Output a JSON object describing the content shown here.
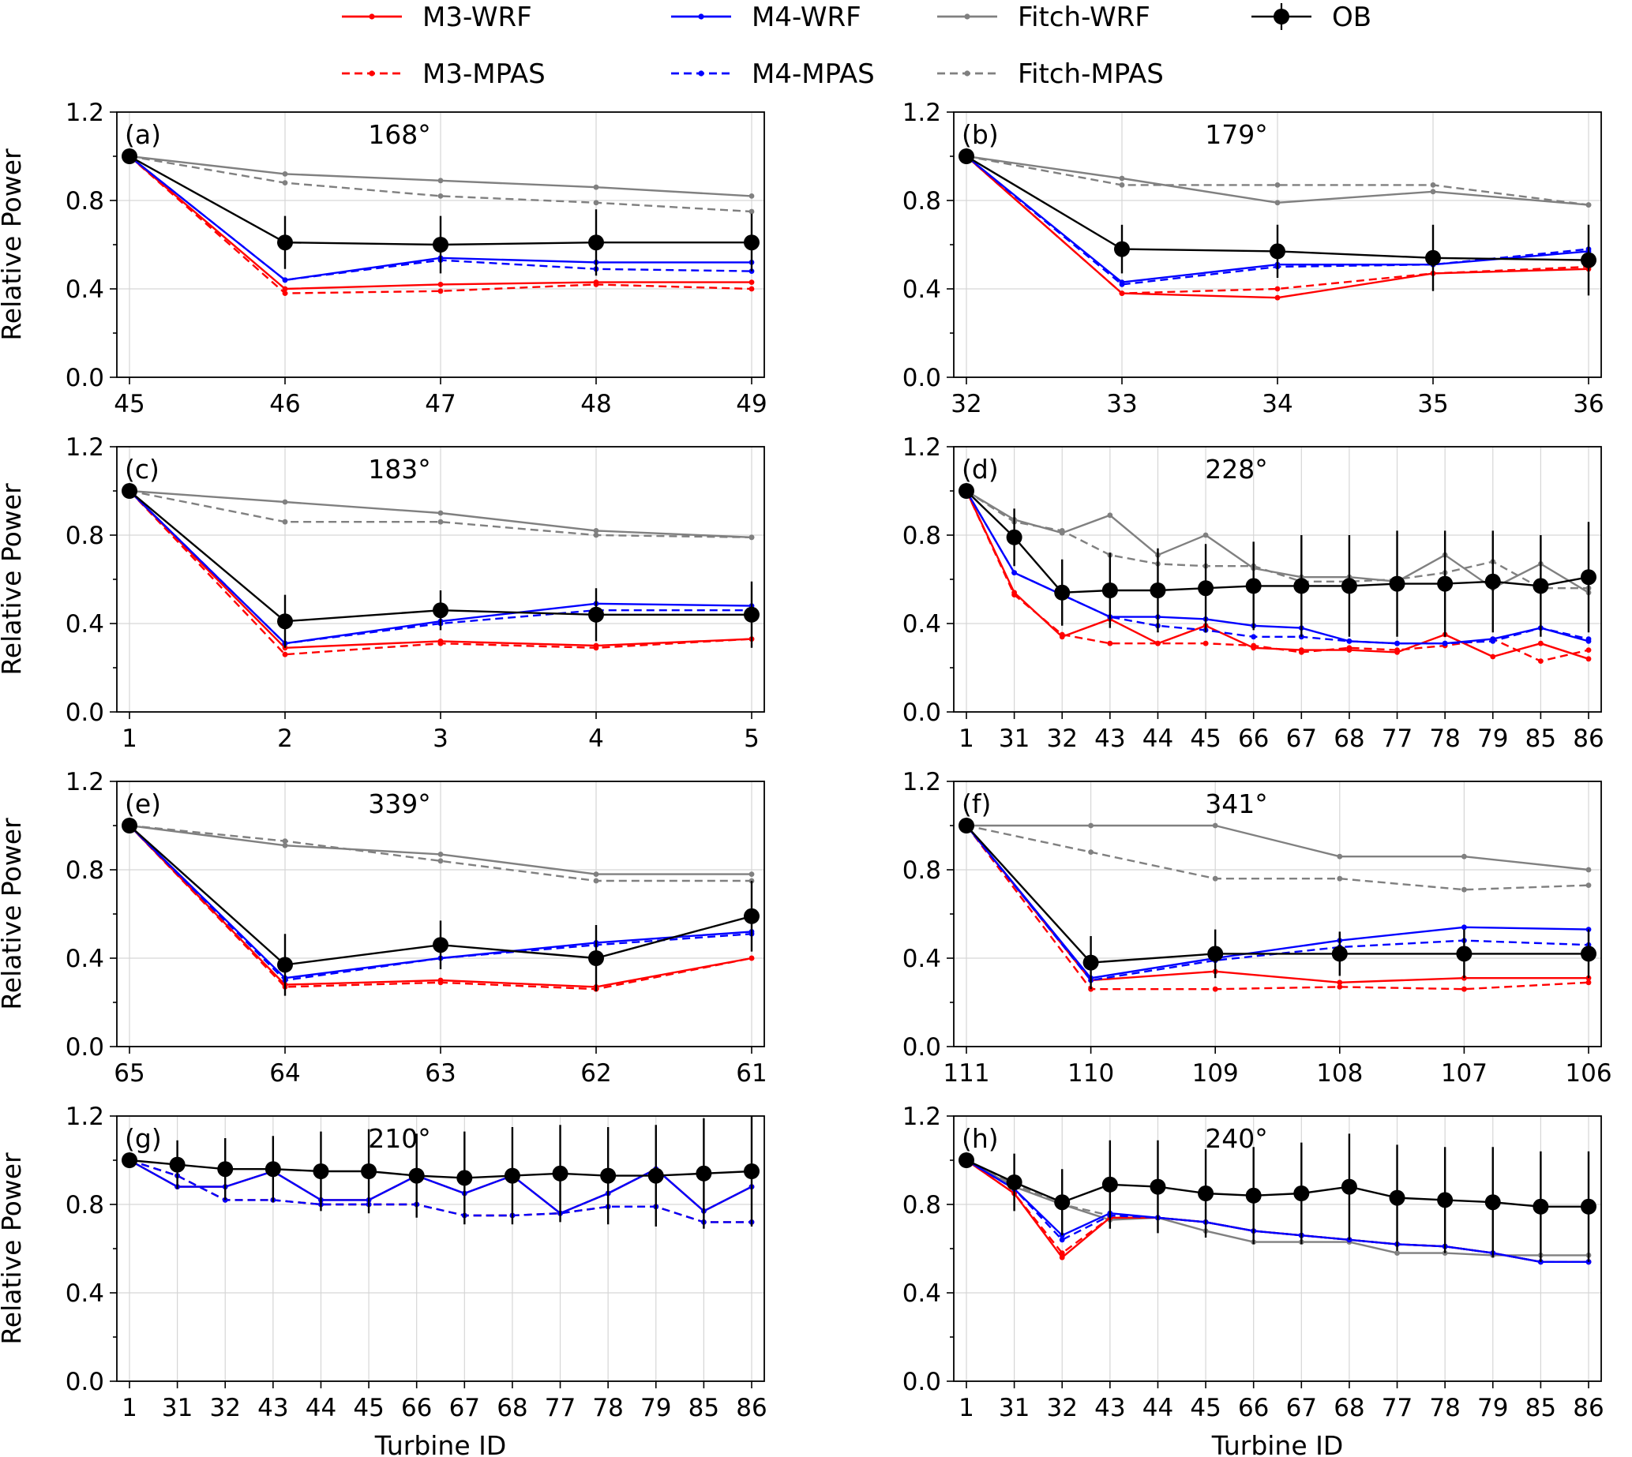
{
  "legend": {
    "entries": [
      {
        "key": "M3-WRF",
        "label": "M3-WRF",
        "color": "#ff0000",
        "dashed": false
      },
      {
        "key": "M4-WRF",
        "label": "M4-WRF",
        "color": "#0000ff",
        "dashed": false
      },
      {
        "key": "Fitch-WRF",
        "label": "Fitch-WRF",
        "color": "#808080",
        "dashed": false
      },
      {
        "key": "OB",
        "label": "OB",
        "color": "#000000",
        "dashed": false
      },
      {
        "key": "M3-MPAS",
        "label": "M3-MPAS",
        "color": "#ff0000",
        "dashed": true
      },
      {
        "key": "M4-MPAS",
        "label": "M4-MPAS",
        "color": "#0000ff",
        "dashed": true
      },
      {
        "key": "Fitch-MPAS",
        "label": "Fitch-MPAS",
        "color": "#808080",
        "dashed": true
      }
    ]
  },
  "axis_labels": {
    "ylabel": "Relative Power",
    "xlabel": "Turbine ID"
  },
  "chart_data": [
    {
      "type": "line",
      "panel": "(a)",
      "direction": "168°",
      "categories": [
        "45",
        "46",
        "47",
        "48",
        "49"
      ],
      "ylim": [
        0,
        1.2
      ],
      "yticks": [
        "0.0",
        "0.4",
        "0.8",
        "1.2"
      ],
      "grid": true,
      "series": [
        {
          "name": "Fitch-WRF",
          "values": [
            1.0,
            0.92,
            0.89,
            0.86,
            0.82
          ]
        },
        {
          "name": "Fitch-MPAS",
          "values": [
            1.0,
            0.88,
            0.82,
            0.79,
            0.75
          ]
        },
        {
          "name": "M4-WRF",
          "values": [
            1.0,
            0.44,
            0.54,
            0.52,
            0.52
          ]
        },
        {
          "name": "M4-MPAS",
          "values": [
            1.0,
            0.44,
            0.53,
            0.49,
            0.48
          ]
        },
        {
          "name": "M3-WRF",
          "values": [
            1.0,
            0.4,
            0.42,
            0.43,
            0.43
          ]
        },
        {
          "name": "M3-MPAS",
          "values": [
            1.0,
            0.38,
            0.39,
            0.42,
            0.4
          ]
        },
        {
          "name": "OB",
          "values": [
            1.0,
            0.61,
            0.6,
            0.61,
            0.61
          ],
          "err": [
            0,
            0.12,
            0.13,
            0.15,
            0.13
          ]
        }
      ]
    },
    {
      "type": "line",
      "panel": "(b)",
      "direction": "179°",
      "categories": [
        "32",
        "33",
        "34",
        "35",
        "36"
      ],
      "ylim": [
        0,
        1.2
      ],
      "yticks": [
        "0.0",
        "0.4",
        "0.8",
        "1.2"
      ],
      "grid": true,
      "series": [
        {
          "name": "Fitch-WRF",
          "values": [
            1.0,
            0.9,
            0.79,
            0.84,
            0.78
          ]
        },
        {
          "name": "Fitch-MPAS",
          "values": [
            1.0,
            0.87,
            0.87,
            0.87,
            0.78
          ]
        },
        {
          "name": "M4-WRF",
          "values": [
            1.0,
            0.43,
            0.51,
            0.51,
            0.57
          ]
        },
        {
          "name": "M4-MPAS",
          "values": [
            1.0,
            0.42,
            0.5,
            0.51,
            0.58
          ]
        },
        {
          "name": "M3-WRF",
          "values": [
            1.0,
            0.38,
            0.36,
            0.47,
            0.49
          ]
        },
        {
          "name": "M3-MPAS",
          "values": [
            1.0,
            0.38,
            0.4,
            0.47,
            0.5
          ]
        },
        {
          "name": "OB",
          "values": [
            1.0,
            0.58,
            0.57,
            0.54,
            0.53
          ],
          "err": [
            0,
            0.11,
            0.12,
            0.15,
            0.16
          ]
        }
      ]
    },
    {
      "type": "line",
      "panel": "(c)",
      "direction": "183°",
      "categories": [
        "1",
        "2",
        "3",
        "4",
        "5"
      ],
      "ylim": [
        0,
        1.2
      ],
      "yticks": [
        "0.0",
        "0.4",
        "0.8",
        "1.2"
      ],
      "grid": true,
      "series": [
        {
          "name": "Fitch-WRF",
          "values": [
            1.0,
            0.95,
            0.9,
            0.82,
            0.79
          ]
        },
        {
          "name": "Fitch-MPAS",
          "values": [
            1.0,
            0.86,
            0.86,
            0.8,
            0.79
          ]
        },
        {
          "name": "M4-WRF",
          "values": [
            1.0,
            0.31,
            0.41,
            0.49,
            0.48
          ]
        },
        {
          "name": "M4-MPAS",
          "values": [
            1.0,
            0.31,
            0.4,
            0.46,
            0.46
          ]
        },
        {
          "name": "M3-WRF",
          "values": [
            1.0,
            0.29,
            0.32,
            0.3,
            0.33
          ]
        },
        {
          "name": "M3-MPAS",
          "values": [
            1.0,
            0.26,
            0.31,
            0.29,
            0.33
          ]
        },
        {
          "name": "OB",
          "values": [
            1.0,
            0.41,
            0.46,
            0.44,
            0.44
          ],
          "err": [
            0,
            0.12,
            0.09,
            0.12,
            0.15
          ]
        }
      ]
    },
    {
      "type": "line",
      "panel": "(d)",
      "direction": "228°",
      "categories": [
        "1",
        "31",
        "32",
        "43",
        "44",
        "45",
        "66",
        "67",
        "68",
        "77",
        "78",
        "79",
        "85",
        "86"
      ],
      "ylim": [
        0,
        1.2
      ],
      "yticks": [
        "0.0",
        "0.4",
        "0.8",
        "1.2"
      ],
      "grid": true,
      "series": [
        {
          "name": "Fitch-WRF",
          "values": [
            1.0,
            0.87,
            0.81,
            0.89,
            0.71,
            0.8,
            0.65,
            0.61,
            0.61,
            0.59,
            0.71,
            0.56,
            0.67,
            0.54
          ]
        },
        {
          "name": "Fitch-MPAS",
          "values": [
            1.0,
            0.86,
            0.82,
            0.71,
            0.67,
            0.66,
            0.66,
            0.59,
            0.59,
            0.6,
            0.63,
            0.68,
            0.56,
            0.56
          ]
        },
        {
          "name": "M4-WRF",
          "values": [
            1.0,
            0.63,
            0.53,
            0.43,
            0.43,
            0.42,
            0.39,
            0.38,
            0.32,
            0.31,
            0.31,
            0.33,
            0.38,
            0.32
          ]
        },
        {
          "name": "M4-MPAS",
          "values": [
            1.0,
            0.63,
            0.53,
            0.43,
            0.39,
            0.37,
            0.34,
            0.34,
            0.32,
            0.31,
            0.31,
            0.32,
            0.38,
            0.33
          ]
        },
        {
          "name": "M3-WRF",
          "values": [
            1.0,
            0.54,
            0.34,
            0.42,
            0.31,
            0.39,
            0.29,
            0.28,
            0.28,
            0.27,
            0.35,
            0.25,
            0.31,
            0.24
          ]
        },
        {
          "name": "M3-MPAS",
          "values": [
            1.0,
            0.53,
            0.35,
            0.31,
            0.31,
            0.31,
            0.3,
            0.27,
            0.29,
            0.28,
            0.3,
            0.33,
            0.23,
            0.28
          ]
        },
        {
          "name": "OB",
          "values": [
            1.0,
            0.79,
            0.54,
            0.55,
            0.55,
            0.56,
            0.57,
            0.57,
            0.57,
            0.58,
            0.58,
            0.59,
            0.57,
            0.61
          ],
          "err": [
            0,
            0.13,
            0.15,
            0.17,
            0.19,
            0.2,
            0.2,
            0.23,
            0.23,
            0.24,
            0.24,
            0.23,
            0.23,
            0.25
          ]
        }
      ]
    },
    {
      "type": "line",
      "panel": "(e)",
      "direction": "339°",
      "categories": [
        "65",
        "64",
        "63",
        "62",
        "61"
      ],
      "ylim": [
        0,
        1.2
      ],
      "yticks": [
        "0.0",
        "0.4",
        "0.8",
        "1.2"
      ],
      "grid": true,
      "series": [
        {
          "name": "Fitch-WRF",
          "values": [
            1.0,
            0.91,
            0.87,
            0.78,
            0.78
          ]
        },
        {
          "name": "Fitch-MPAS",
          "values": [
            1.0,
            0.93,
            0.84,
            0.75,
            0.75
          ]
        },
        {
          "name": "M4-WRF",
          "values": [
            1.0,
            0.31,
            0.4,
            0.47,
            0.52
          ]
        },
        {
          "name": "M4-MPAS",
          "values": [
            1.0,
            0.3,
            0.4,
            0.46,
            0.51
          ]
        },
        {
          "name": "M3-WRF",
          "values": [
            1.0,
            0.28,
            0.3,
            0.27,
            0.4
          ]
        },
        {
          "name": "M3-MPAS",
          "values": [
            1.0,
            0.27,
            0.29,
            0.26,
            0.4
          ]
        },
        {
          "name": "OB",
          "values": [
            1.0,
            0.37,
            0.46,
            0.4,
            0.59
          ],
          "err": [
            0,
            0.14,
            0.11,
            0.15,
            0.16
          ]
        }
      ]
    },
    {
      "type": "line",
      "panel": "(f)",
      "direction": "341°",
      "categories": [
        "111",
        "110",
        "109",
        "108",
        "107",
        "106"
      ],
      "ylim": [
        0,
        1.2
      ],
      "yticks": [
        "0.0",
        "0.4",
        "0.8",
        "1.2"
      ],
      "grid": true,
      "series": [
        {
          "name": "Fitch-WRF",
          "values": [
            1.0,
            1.0,
            1.0,
            0.86,
            0.86,
            0.8
          ]
        },
        {
          "name": "Fitch-MPAS",
          "values": [
            1.0,
            0.88,
            0.76,
            0.76,
            0.71,
            0.73
          ]
        },
        {
          "name": "M4-WRF",
          "values": [
            1.0,
            0.31,
            0.4,
            0.48,
            0.54,
            0.53
          ]
        },
        {
          "name": "M4-MPAS",
          "values": [
            1.0,
            0.3,
            0.39,
            0.45,
            0.48,
            0.46
          ]
        },
        {
          "name": "M3-WRF",
          "values": [
            1.0,
            0.3,
            0.34,
            0.29,
            0.31,
            0.31
          ]
        },
        {
          "name": "M3-MPAS",
          "values": [
            1.0,
            0.26,
            0.26,
            0.27,
            0.26,
            0.29
          ]
        },
        {
          "name": "OB",
          "values": [
            1.0,
            0.38,
            0.42,
            0.42,
            0.42,
            0.42
          ],
          "err": [
            0,
            0.12,
            0.11,
            0.1,
            0.11,
            0.11
          ]
        }
      ]
    },
    {
      "type": "line",
      "panel": "(g)",
      "direction": "210°",
      "categories": [
        "1",
        "31",
        "32",
        "43",
        "44",
        "45",
        "66",
        "67",
        "68",
        "77",
        "78",
        "79",
        "85",
        "86"
      ],
      "ylim": [
        0,
        1.2
      ],
      "yticks": [
        "0.0",
        "0.4",
        "0.8",
        "1.2"
      ],
      "grid": true,
      "series": [
        {
          "name": "M3-WRF",
          "values": [
            1.0,
            0.88,
            0.88,
            0.95,
            0.82,
            0.82,
            0.93,
            0.85,
            0.93,
            0.76,
            0.85,
            0.96,
            0.77,
            0.88
          ]
        },
        {
          "name": "M4-WRF",
          "values": [
            1.0,
            0.88,
            0.88,
            0.95,
            0.82,
            0.82,
            0.93,
            0.85,
            0.93,
            0.76,
            0.85,
            0.96,
            0.77,
            0.88
          ]
        },
        {
          "name": "Fitch-WRF",
          "values": [
            1.0,
            0.88,
            0.88,
            0.95,
            0.82,
            0.82,
            0.93,
            0.85,
            0.93,
            0.76,
            0.85,
            0.96,
            0.77,
            0.88
          ]
        },
        {
          "name": "M3-MPAS",
          "values": [
            1.0,
            0.93,
            0.82,
            0.82,
            0.8,
            0.8,
            0.8,
            0.75,
            0.75,
            0.76,
            0.79,
            0.79,
            0.72,
            0.72
          ]
        },
        {
          "name": "M4-MPAS",
          "values": [
            1.0,
            0.93,
            0.82,
            0.82,
            0.8,
            0.8,
            0.8,
            0.75,
            0.75,
            0.76,
            0.79,
            0.79,
            0.72,
            0.72
          ]
        },
        {
          "name": "Fitch-MPAS",
          "values": [
            1.0,
            0.93,
            0.82,
            0.82,
            0.8,
            0.8,
            0.8,
            0.75,
            0.75,
            0.76,
            0.79,
            0.79,
            0.72,
            0.72
          ]
        },
        {
          "name": "OB",
          "values": [
            1.0,
            0.98,
            0.96,
            0.96,
            0.95,
            0.95,
            0.93,
            0.92,
            0.93,
            0.94,
            0.93,
            0.93,
            0.94,
            0.95
          ],
          "err": [
            0,
            0.11,
            0.14,
            0.15,
            0.18,
            0.19,
            0.19,
            0.21,
            0.22,
            0.22,
            0.22,
            0.23,
            0.25,
            0.25
          ]
        }
      ]
    },
    {
      "type": "line",
      "panel": "(h)",
      "direction": "240°",
      "categories": [
        "1",
        "31",
        "32",
        "43",
        "44",
        "45",
        "66",
        "67",
        "68",
        "77",
        "78",
        "79",
        "85",
        "86"
      ],
      "ylim": [
        0,
        1.2
      ],
      "yticks": [
        "0.0",
        "0.4",
        "0.8",
        "1.2"
      ],
      "grid": true,
      "series": [
        {
          "name": "Fitch-WRF",
          "values": [
            1.0,
            0.88,
            0.8,
            0.73,
            0.74,
            0.68,
            0.63,
            0.63,
            0.63,
            0.58,
            0.58,
            0.57,
            0.57,
            0.57
          ]
        },
        {
          "name": "Fitch-MPAS",
          "values": [
            1.0,
            0.89,
            0.8,
            0.75,
            0.74,
            0.72,
            0.68,
            0.66,
            0.64,
            0.62,
            0.61,
            0.58,
            0.54,
            0.54
          ]
        },
        {
          "name": "M4-WRF",
          "values": [
            1.0,
            0.87,
            0.66,
            0.76,
            0.74,
            0.72,
            0.68,
            0.66,
            0.64,
            0.62,
            0.61,
            0.58,
            0.54,
            0.54
          ]
        },
        {
          "name": "M4-MPAS",
          "values": [
            1.0,
            0.87,
            0.64,
            0.75,
            0.74,
            0.72,
            0.68,
            0.66,
            0.64,
            0.62,
            0.61,
            0.58,
            0.54,
            0.54
          ]
        },
        {
          "name": "M3-WRF",
          "values": [
            1.0,
            0.85,
            0.56,
            0.74,
            0.74,
            0.72,
            0.68,
            0.66,
            0.64,
            0.62,
            0.61,
            0.58,
            0.54,
            0.54
          ]
        },
        {
          "name": "M3-MPAS",
          "values": [
            1.0,
            0.85,
            0.58,
            0.74,
            0.74,
            0.72,
            0.68,
            0.66,
            0.64,
            0.62,
            0.61,
            0.58,
            0.54,
            0.54
          ]
        },
        {
          "name": "OB",
          "values": [
            1.0,
            0.9,
            0.81,
            0.89,
            0.88,
            0.85,
            0.84,
            0.85,
            0.88,
            0.83,
            0.82,
            0.81,
            0.79,
            0.79
          ],
          "err": [
            0,
            0.13,
            0.15,
            0.2,
            0.21,
            0.2,
            0.22,
            0.23,
            0.24,
            0.24,
            0.24,
            0.25,
            0.25,
            0.25
          ]
        }
      ]
    }
  ]
}
